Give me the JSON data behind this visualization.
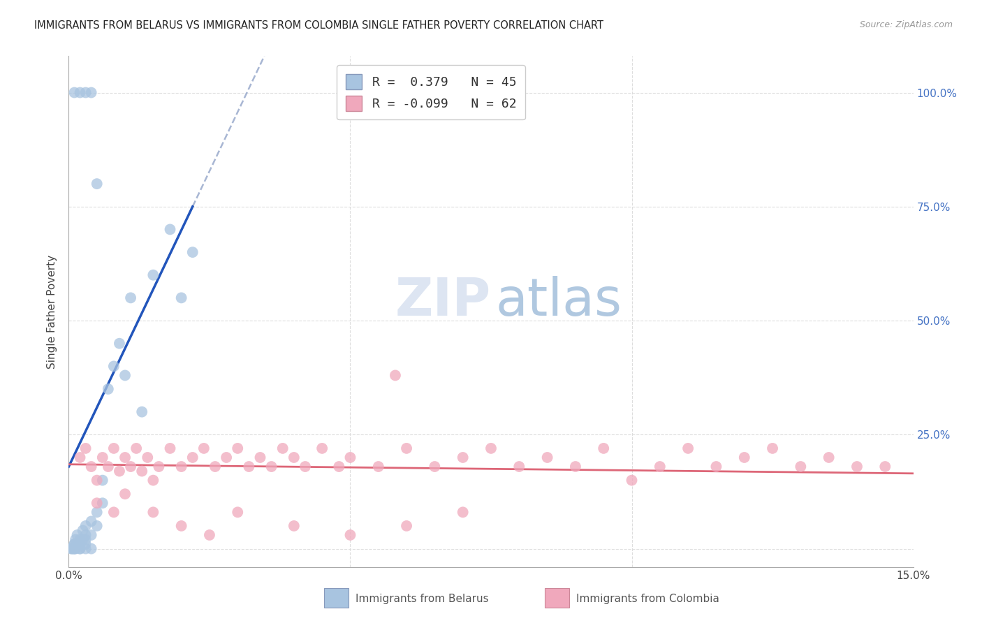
{
  "title": "IMMIGRANTS FROM BELARUS VS IMMIGRANTS FROM COLOMBIA SINGLE FATHER POVERTY CORRELATION CHART",
  "source": "Source: ZipAtlas.com",
  "ylabel": "Single Father Poverty",
  "xlim_min": 0.0,
  "xlim_max": 0.15,
  "ylim_min": -0.04,
  "ylim_max": 1.08,
  "x_ticks": [
    0.0,
    0.05,
    0.1,
    0.15
  ],
  "x_tick_labels": [
    "0.0%",
    "",
    "",
    "15.0%"
  ],
  "y_ticks": [
    0.0,
    0.25,
    0.5,
    0.75,
    1.0
  ],
  "y_tick_labels_right": [
    "",
    "25.0%",
    "50.0%",
    "75.0%",
    "100.0%"
  ],
  "color_belarus": "#a8c4e0",
  "color_colombia": "#f0a8bc",
  "color_line_belarus": "#2255bb",
  "color_line_colombia": "#dd6677",
  "color_dashed": "#99aacc",
  "grid_color": "#dddddd",
  "scatter_size": 130,
  "scatter_alpha": 0.75,
  "belarus_x": [
    0.0005,
    0.0008,
    0.001,
    0.001,
    0.0012,
    0.0012,
    0.0015,
    0.0015,
    0.002,
    0.002,
    0.002,
    0.0025,
    0.0025,
    0.003,
    0.003,
    0.003,
    0.003,
    0.004,
    0.004,
    0.005,
    0.005,
    0.006,
    0.006,
    0.007,
    0.008,
    0.009,
    0.01,
    0.011,
    0.013,
    0.015,
    0.018,
    0.02,
    0.022,
    0.001,
    0.002,
    0.003,
    0.004,
    0.005,
    0.0005,
    0.001,
    0.001,
    0.002,
    0.003,
    0.004
  ],
  "belarus_y": [
    0.0,
    0.0,
    0.0,
    0.01,
    0.0,
    0.02,
    0.01,
    0.03,
    0.0,
    0.01,
    0.02,
    0.02,
    0.04,
    0.01,
    0.02,
    0.03,
    0.05,
    0.03,
    0.06,
    0.05,
    0.08,
    0.1,
    0.15,
    0.35,
    0.4,
    0.45,
    0.38,
    0.55,
    0.3,
    0.6,
    0.7,
    0.55,
    0.65,
    1.0,
    1.0,
    1.0,
    1.0,
    0.8,
    0.0,
    0.0,
    0.01,
    0.0,
    0.0,
    0.0
  ],
  "colombia_x": [
    0.002,
    0.003,
    0.004,
    0.005,
    0.006,
    0.007,
    0.008,
    0.009,
    0.01,
    0.011,
    0.012,
    0.013,
    0.014,
    0.015,
    0.016,
    0.018,
    0.02,
    0.022,
    0.024,
    0.026,
    0.028,
    0.03,
    0.032,
    0.034,
    0.036,
    0.038,
    0.04,
    0.042,
    0.045,
    0.048,
    0.05,
    0.055,
    0.058,
    0.06,
    0.065,
    0.07,
    0.075,
    0.08,
    0.085,
    0.09,
    0.095,
    0.1,
    0.105,
    0.11,
    0.115,
    0.12,
    0.125,
    0.13,
    0.135,
    0.14,
    0.145,
    0.005,
    0.008,
    0.01,
    0.015,
    0.02,
    0.025,
    0.03,
    0.04,
    0.05,
    0.06,
    0.07
  ],
  "colombia_y": [
    0.2,
    0.22,
    0.18,
    0.15,
    0.2,
    0.18,
    0.22,
    0.17,
    0.2,
    0.18,
    0.22,
    0.17,
    0.2,
    0.15,
    0.18,
    0.22,
    0.18,
    0.2,
    0.22,
    0.18,
    0.2,
    0.22,
    0.18,
    0.2,
    0.18,
    0.22,
    0.2,
    0.18,
    0.22,
    0.18,
    0.2,
    0.18,
    0.38,
    0.22,
    0.18,
    0.2,
    0.22,
    0.18,
    0.2,
    0.18,
    0.22,
    0.15,
    0.18,
    0.22,
    0.18,
    0.2,
    0.22,
    0.18,
    0.2,
    0.18,
    0.18,
    0.1,
    0.08,
    0.12,
    0.08,
    0.05,
    0.03,
    0.08,
    0.05,
    0.03,
    0.05,
    0.08
  ]
}
